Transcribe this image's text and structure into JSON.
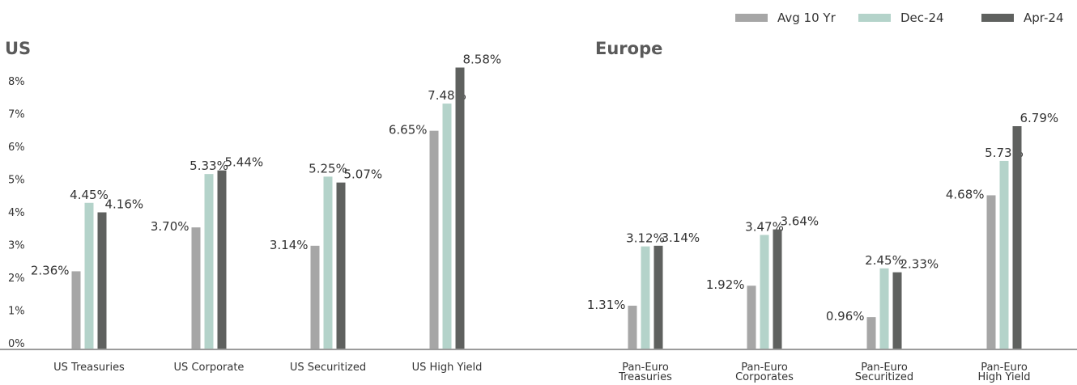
{
  "chart_data": {
    "type": "bar",
    "legend": {
      "position": "top-right"
    },
    "series": [
      {
        "name": "Avg 10 Yr",
        "color": "#a6a6a6"
      },
      {
        "name": "Dec-24",
        "color": "#b4d3ca"
      },
      {
        "name": "Apr-24",
        "color": "#5f615f"
      }
    ],
    "ylim": [
      0,
      8
    ],
    "yticks": [
      "0%",
      "1%",
      "2%",
      "3%",
      "4%",
      "5%",
      "6%",
      "7%",
      "8%"
    ],
    "panels": [
      {
        "title": "US",
        "categories": [
          [
            "US Treasuries"
          ],
          [
            "US Corporate"
          ],
          [
            "US Securitized"
          ],
          [
            "US High Yield"
          ]
        ],
        "values": [
          [
            2.36,
            4.45,
            4.16
          ],
          [
            3.7,
            5.33,
            5.44
          ],
          [
            3.14,
            5.25,
            5.07
          ],
          [
            6.65,
            7.48,
            8.58
          ]
        ],
        "labels": [
          [
            "2.36%",
            "4.45%",
            "4.16%"
          ],
          [
            "3.70%",
            "5.33%",
            "5.44%"
          ],
          [
            "3.14%",
            "5.25%",
            "5.07%"
          ],
          [
            "6.65%",
            "7.48%",
            "8.58%"
          ]
        ]
      },
      {
        "title": "Europe",
        "categories": [
          [
            "Pan-Euro",
            "Treasuries"
          ],
          [
            "Pan-Euro",
            "Corporates"
          ],
          [
            "Pan-Euro",
            "Securitized"
          ],
          [
            "Pan-Euro",
            "High Yield"
          ]
        ],
        "values": [
          [
            1.31,
            3.12,
            3.14
          ],
          [
            1.92,
            3.47,
            3.64
          ],
          [
            0.96,
            2.45,
            2.33
          ],
          [
            4.68,
            5.73,
            6.79
          ]
        ],
        "labels": [
          [
            "1.31%",
            "3.12%",
            "3.14%"
          ],
          [
            "1.92%",
            "3.47%",
            "3.64%"
          ],
          [
            "0.96%",
            "2.45%",
            "2.33%"
          ],
          [
            "4.68%",
            "5.73%",
            "6.79%"
          ]
        ]
      }
    ]
  }
}
